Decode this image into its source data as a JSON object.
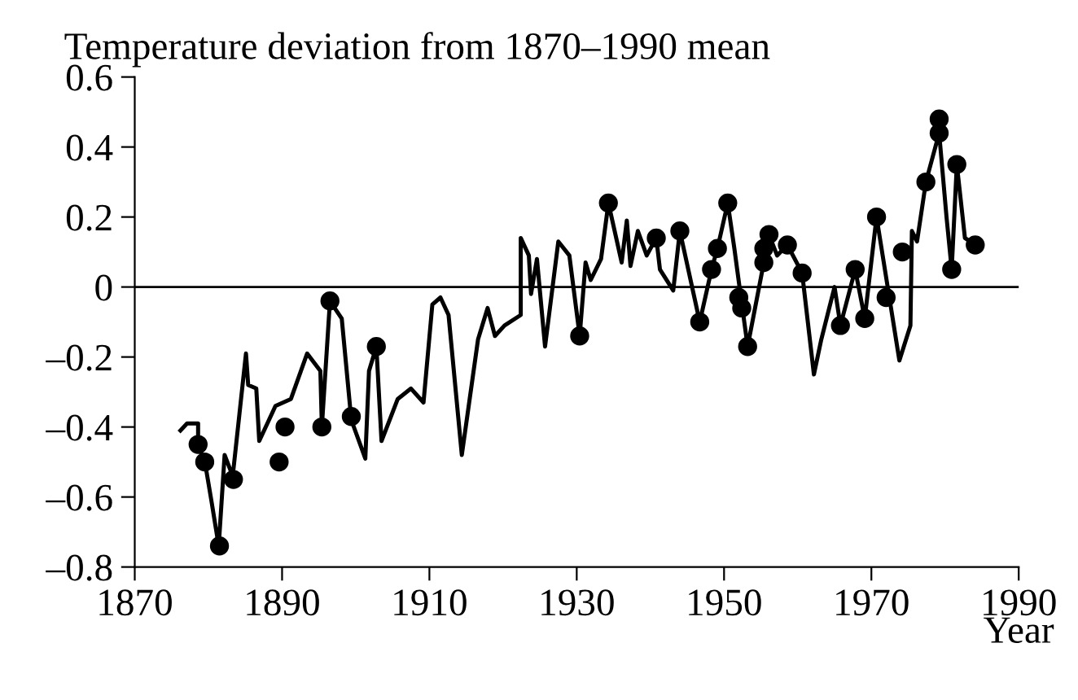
{
  "chart_data": {
    "type": "line",
    "title": "Temperature deviation from 1870–1990 mean",
    "xlabel": "Year",
    "xlim": [
      1870,
      1990
    ],
    "xticks": [
      1870,
      1890,
      1910,
      1930,
      1950,
      1970,
      1990
    ],
    "ylim": [
      -0.8,
      0.6
    ],
    "yticks": [
      {
        "value": -0.8,
        "label": "–0.8"
      },
      {
        "value": -0.6,
        "label": "–0.6"
      },
      {
        "value": -0.4,
        "label": "–0.4"
      },
      {
        "value": -0.2,
        "label": "–0.2"
      },
      0,
      0.2,
      0.4,
      0.6
    ],
    "grid": false,
    "legend": false,
    "ref_lines": [
      {
        "axis": "y",
        "value": 0,
        "color": "#000000"
      }
    ],
    "series": [
      {
        "color": "#000000",
        "marker": "none",
        "line_style": "solid",
        "x": [
          1876.2,
          1877.1,
          1878.6,
          1878.6,
          1879.6,
          1880.4,
          1881.4,
          1882.2,
          1883.3,
          1885.1,
          1885.4,
          1886.5,
          1886.9,
          1889.1,
          1891.2,
          1893.4,
          1895.2,
          1895.4,
          1896.5,
          1898.1,
          1899.4,
          1901.3,
          1901.8,
          1902.8,
          1903.5,
          1905.7,
          1907.5,
          1909.2,
          1910.4,
          1911.5,
          1912.6,
          1914.4,
          1916.6,
          1917.9,
          1918.9,
          1920.2,
          1922.4,
          1922.4,
          1923.5,
          1923.8,
          1924.6,
          1925.7,
          1927.5,
          1929.0,
          1930.4,
          1931.2,
          1931.9,
          1933.3,
          1934.3,
          1936.1,
          1936.8,
          1937.3,
          1938.3,
          1939.5,
          1940.8,
          1941.3,
          1943.1,
          1944.0,
          1946.7,
          1948.3,
          1949.1,
          1950.5,
          1951.4,
          1952.1,
          1953.2,
          1955.4,
          1956.1,
          1957.2,
          1958.6,
          1960.6,
          1962.2,
          1963.2,
          1965.0,
          1965.8,
          1967.8,
          1969.1,
          1970.7,
          1973.8,
          1975.3,
          1975.5,
          1976.2,
          1977.4,
          1979.2,
          1980.2,
          1980.9,
          1981.6,
          1982.7,
          1984.1
        ],
        "values": [
          -0.41,
          -0.39,
          -0.39,
          -0.45,
          -0.51,
          -0.61,
          -0.74,
          -0.48,
          -0.54,
          -0.19,
          -0.28,
          -0.29,
          -0.44,
          -0.34,
          -0.32,
          -0.19,
          -0.24,
          -0.4,
          -0.04,
          -0.09,
          -0.38,
          -0.49,
          -0.24,
          -0.17,
          -0.44,
          -0.32,
          -0.29,
          -0.33,
          -0.05,
          -0.03,
          -0.08,
          -0.48,
          -0.15,
          -0.06,
          -0.14,
          -0.11,
          -0.08,
          0.14,
          0.09,
          -0.02,
          0.08,
          -0.17,
          0.13,
          0.09,
          -0.14,
          0.07,
          0.02,
          0.08,
          0.24,
          0.07,
          0.19,
          0.06,
          0.16,
          0.09,
          0.14,
          0.05,
          -0.01,
          0.16,
          -0.1,
          0.05,
          0.11,
          0.24,
          0.11,
          0.0,
          -0.17,
          0.07,
          0.15,
          0.09,
          0.12,
          0.04,
          -0.25,
          -0.15,
          0.0,
          -0.11,
          0.05,
          -0.09,
          0.2,
          -0.21,
          -0.11,
          0.16,
          0.13,
          0.3,
          0.44,
          0.2,
          0.05,
          0.35,
          0.14,
          0.12
        ]
      },
      {
        "type": "scatter",
        "color": "#000000",
        "marker": "circle",
        "x": [
          1878.6,
          1879.5,
          1881.5,
          1883.4,
          1889.6,
          1890.4,
          1895.4,
          1896.5,
          1899.4,
          1902.8,
          1930.4,
          1934.3,
          1940.8,
          1944.0,
          1946.7,
          1948.3,
          1949.1,
          1950.5,
          1952.0,
          1952.4,
          1953.2,
          1955.4,
          1955.4,
          1956.1,
          1958.6,
          1960.6,
          1965.8,
          1967.8,
          1969.1,
          1970.7,
          1972.0,
          1974.2,
          1977.4,
          1979.2,
          1979.2,
          1980.9,
          1981.6,
          1984.1
        ],
        "values": [
          -0.45,
          -0.5,
          -0.74,
          -0.55,
          -0.5,
          -0.4,
          -0.4,
          -0.04,
          -0.37,
          -0.17,
          -0.14,
          0.24,
          0.14,
          0.16,
          -0.1,
          0.05,
          0.11,
          0.24,
          -0.03,
          -0.06,
          -0.17,
          0.07,
          0.11,
          0.15,
          0.12,
          0.04,
          -0.11,
          0.05,
          -0.09,
          0.2,
          -0.03,
          0.1,
          0.3,
          0.48,
          0.44,
          0.05,
          0.35,
          0.12
        ]
      }
    ]
  }
}
